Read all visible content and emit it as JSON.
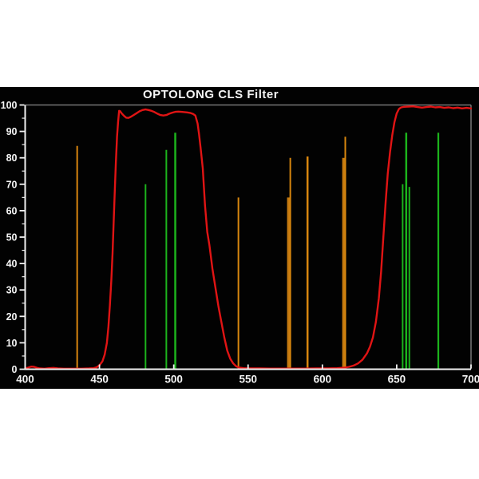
{
  "chart_data": {
    "type": "line",
    "title": "OPTOLONG CLS Filter",
    "xlabel": "",
    "ylabel": "",
    "xlim": [
      400,
      700
    ],
    "ylim": [
      0,
      100
    ],
    "x_ticks": [
      400,
      450,
      500,
      550,
      600,
      650,
      700
    ],
    "y_ticks": [
      0,
      10,
      20,
      30,
      40,
      50,
      60,
      70,
      80,
      90,
      100
    ],
    "y_minor_step": 5,
    "grid": "off",
    "legend": "none",
    "background": "#020202",
    "axis_color": "#f0f0f0",
    "frame_color": "#8a8a8a",
    "label_color": "#f5f5f5",
    "series": [
      {
        "name": "transmission-curve",
        "color": "#e01414",
        "points": [
          [
            400,
            0.3
          ],
          [
            402,
            0.6
          ],
          [
            404,
            1.0
          ],
          [
            406,
            0.9
          ],
          [
            408,
            0.5
          ],
          [
            410,
            0.3
          ],
          [
            413,
            0.2
          ],
          [
            416,
            0.4
          ],
          [
            419,
            0.5
          ],
          [
            422,
            0.3
          ],
          [
            426,
            0.2
          ],
          [
            432,
            0.2
          ],
          [
            438,
            0.2
          ],
          [
            443,
            0.3
          ],
          [
            446,
            0.4
          ],
          [
            448,
            0.7
          ],
          [
            450,
            1.5
          ],
          [
            452,
            3
          ],
          [
            453.5,
            5.5
          ],
          [
            455,
            10
          ],
          [
            456,
            16
          ],
          [
            457,
            24
          ],
          [
            458,
            34
          ],
          [
            458.8,
            44
          ],
          [
            459.5,
            55
          ],
          [
            460.2,
            66
          ],
          [
            461,
            78
          ],
          [
            461.8,
            88
          ],
          [
            462.5,
            93.5
          ],
          [
            463.2,
            97.8
          ],
          [
            464,
            97.6
          ],
          [
            465,
            96.8
          ],
          [
            466.5,
            95.9
          ],
          [
            468,
            95.2
          ],
          [
            469.5,
            95.1
          ],
          [
            471,
            95.5
          ],
          [
            473,
            96.2
          ],
          [
            475,
            96.9
          ],
          [
            477,
            97.6
          ],
          [
            479,
            98.1
          ],
          [
            481,
            98.3
          ],
          [
            483,
            98.1
          ],
          [
            485,
            97.8
          ],
          [
            487,
            97.3
          ],
          [
            489,
            96.7
          ],
          [
            491,
            96.2
          ],
          [
            493,
            96.0
          ],
          [
            495,
            96.2
          ],
          [
            497,
            96.7
          ],
          [
            499,
            97.1
          ],
          [
            501,
            97.4
          ],
          [
            503,
            97.5
          ],
          [
            505,
            97.4
          ],
          [
            507,
            97.3
          ],
          [
            509,
            97.2
          ],
          [
            511,
            97.0
          ],
          [
            513,
            96.6
          ],
          [
            514.5,
            96.0
          ],
          [
            516,
            93
          ],
          [
            517,
            89
          ],
          [
            518,
            84
          ],
          [
            519.5,
            76
          ],
          [
            521,
            62
          ],
          [
            522.5,
            52
          ],
          [
            524,
            47
          ],
          [
            526,
            38
          ],
          [
            528,
            31
          ],
          [
            530,
            24
          ],
          [
            532,
            18
          ],
          [
            534,
            12
          ],
          [
            536,
            7
          ],
          [
            538,
            4
          ],
          [
            540,
            2.2
          ],
          [
            542,
            1.1
          ],
          [
            544,
            0.6
          ],
          [
            547,
            0.4
          ],
          [
            552,
            0.3
          ],
          [
            558,
            0.3
          ],
          [
            565,
            0.25
          ],
          [
            572,
            0.25
          ],
          [
            580,
            0.25
          ],
          [
            588,
            0.25
          ],
          [
            596,
            0.3
          ],
          [
            604,
            0.3
          ],
          [
            610,
            0.4
          ],
          [
            615,
            0.6
          ],
          [
            618,
            0.9
          ],
          [
            621,
            1.4
          ],
          [
            624,
            2.2
          ],
          [
            627,
            3.6
          ],
          [
            630,
            6
          ],
          [
            632,
            8.5
          ],
          [
            634,
            12
          ],
          [
            636,
            18
          ],
          [
            638,
            27
          ],
          [
            639.5,
            37
          ],
          [
            641,
            50
          ],
          [
            642.5,
            63
          ],
          [
            644,
            74
          ],
          [
            645.5,
            82
          ],
          [
            647,
            88.5
          ],
          [
            648.5,
            93.5
          ],
          [
            650,
            96.8
          ],
          [
            651.5,
            98.5
          ],
          [
            653,
            99.1
          ],
          [
            655,
            99.3
          ],
          [
            658,
            99.4
          ],
          [
            661,
            99.5
          ],
          [
            664,
            99.2
          ],
          [
            667,
            99.0
          ],
          [
            670,
            99.2
          ],
          [
            673,
            99.4
          ],
          [
            676,
            99.1
          ],
          [
            679,
            99.2
          ],
          [
            682,
            98.9
          ],
          [
            685,
            99.1
          ],
          [
            688,
            98.8
          ],
          [
            691,
            99.0
          ],
          [
            694,
            98.7
          ],
          [
            697,
            98.9
          ],
          [
            700,
            98.7
          ]
        ]
      }
    ],
    "emission_lines": [
      {
        "wavelength": 435,
        "height": 84.5,
        "color": "#d8860e",
        "width": 2
      },
      {
        "wavelength": 481,
        "height": 70,
        "color": "#1cb31c",
        "width": 2
      },
      {
        "wavelength": 495,
        "height": 83,
        "color": "#1cb31c",
        "width": 2
      },
      {
        "wavelength": 501,
        "height": 89.5,
        "color": "#1cb31c",
        "width": 2.5
      },
      {
        "wavelength": 543.5,
        "height": 65,
        "color": "#d8860e",
        "width": 2
      },
      {
        "wavelength": 577.3,
        "height": 65,
        "color": "#c47a10",
        "width": 4
      },
      {
        "wavelength": 578.4,
        "height": 80,
        "color": "#d8860e",
        "width": 2
      },
      {
        "wavelength": 590,
        "height": 80.5,
        "color": "#d8860e",
        "width": 2.5
      },
      {
        "wavelength": 614.4,
        "height": 80,
        "color": "#c47a10",
        "width": 4
      },
      {
        "wavelength": 615.4,
        "height": 88,
        "color": "#d8860e",
        "width": 2
      },
      {
        "wavelength": 654,
        "height": 70,
        "color": "#1cb31c",
        "width": 2
      },
      {
        "wavelength": 656.4,
        "height": 89.5,
        "color": "#1cb31c",
        "width": 2.5
      },
      {
        "wavelength": 658.5,
        "height": 69,
        "color": "#1cb31c",
        "width": 2
      },
      {
        "wavelength": 678,
        "height": 89.5,
        "color": "#1cb31c",
        "width": 2.2
      }
    ]
  }
}
